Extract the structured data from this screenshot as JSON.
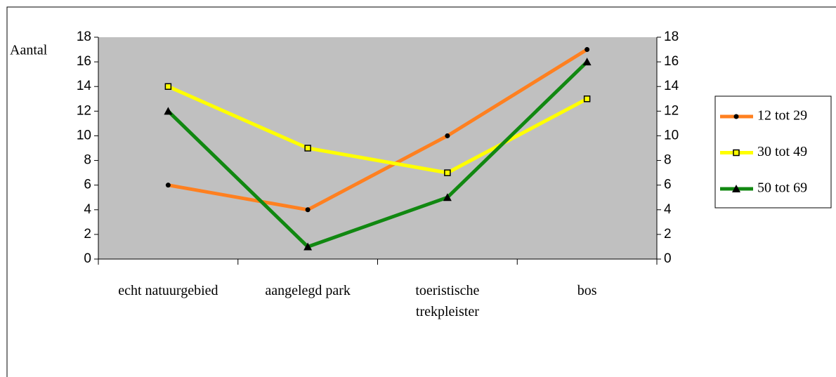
{
  "chart_data": {
    "type": "line",
    "y_label": "Aantal",
    "categories": [
      "echt natuurgebied",
      "aangelegd park",
      "toeristische trekpleister",
      "bos"
    ],
    "series": [
      {
        "name": "12 tot 29",
        "color": "#ff8020",
        "marker": "circle",
        "values": [
          6,
          4,
          10,
          17
        ]
      },
      {
        "name": "30 tot 49",
        "color": "#ffff00",
        "marker": "square",
        "values": [
          14,
          9,
          7,
          13
        ]
      },
      {
        "name": "50 tot 69",
        "color": "#118811",
        "marker": "triangle",
        "values": [
          12,
          1,
          5,
          16
        ]
      }
    ],
    "ylim": [
      0,
      18
    ],
    "yticks": [
      0,
      2,
      4,
      6,
      8,
      10,
      12,
      14,
      16,
      18
    ],
    "y2lim": [
      0,
      18
    ],
    "y2ticks": [
      0,
      2,
      4,
      6,
      8,
      10,
      12,
      14,
      16,
      18
    ],
    "plot_background": "#c0c0c0",
    "grid": false,
    "legend": "right"
  }
}
